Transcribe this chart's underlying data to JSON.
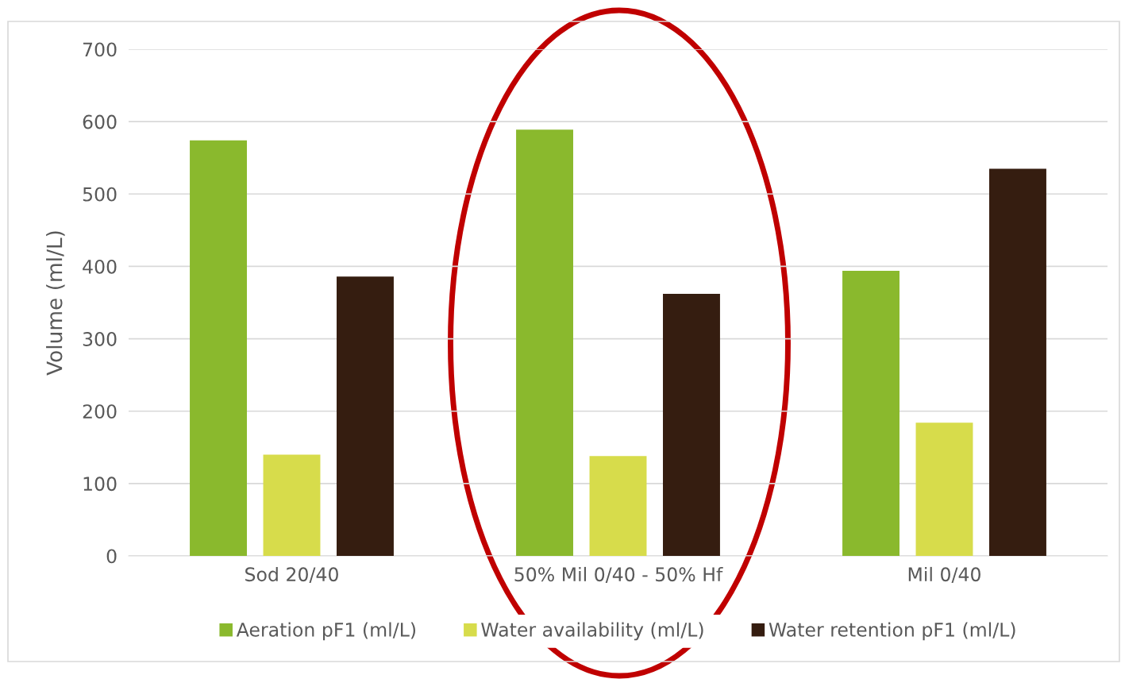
{
  "chart_data": {
    "type": "bar",
    "ylabel": "Volume (ml/L)",
    "categories": [
      "Sod 20/40",
      "50% Mil 0/40 - 50% Hf",
      "Mil 0/40"
    ],
    "series": [
      {
        "name": "Aeration pF1 (ml/L)",
        "color": "#8ab92d",
        "values": [
          574,
          589,
          394
        ]
      },
      {
        "name": "Water availability (ml/L)",
        "color": "#d7dc4b",
        "values": [
          140,
          138,
          184
        ]
      },
      {
        "name": "Water retention pF1 (ml/L)",
        "color": "#351d10",
        "values": [
          386,
          362,
          535
        ]
      }
    ],
    "ylim": [
      0,
      700
    ],
    "yticks": [
      0,
      100,
      200,
      300,
      400,
      500,
      600,
      700
    ],
    "grid": "y",
    "legend": "bottom"
  }
}
